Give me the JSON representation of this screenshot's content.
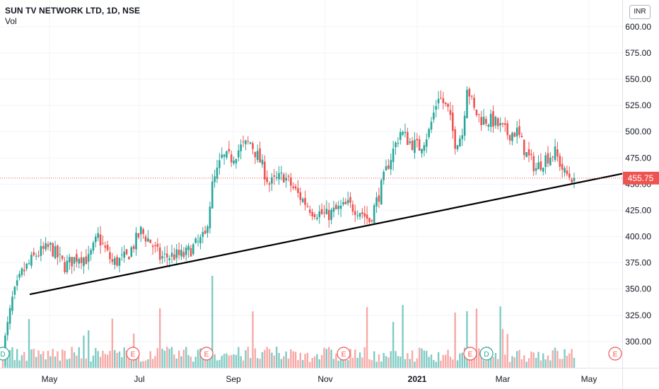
{
  "header": {
    "symbol_line": "SUN TV NETWORK LTD, 1D, NSE",
    "vol_label": "Vol",
    "currency": "INR"
  },
  "chart_data": {
    "type": "candlestick",
    "title": "SUN TV NETWORK LTD, 1D, NSE",
    "currency": "INR",
    "ylim": [
      275,
      612
    ],
    "y_ticks": [
      300.0,
      325.0,
      350.0,
      375.0,
      400.0,
      425.0,
      450.0,
      475.0,
      500.0,
      525.0,
      550.0,
      575.0,
      600.0
    ],
    "y_tick_labels": [
      "300.00",
      "325.00",
      "350.00",
      "375.00",
      "400.00",
      "425.00",
      "450.00",
      "475.00",
      "500.00",
      "525.00",
      "550.00",
      "575.00",
      "600.00"
    ],
    "x_ticks": [
      "May",
      "Jul",
      "Sep",
      "Nov",
      "2021",
      "Mar",
      "May"
    ],
    "last_price": 455.75,
    "last_price_label": "455.75",
    "trendline": {
      "start_price": 345.0,
      "end_price": 460.0,
      "start_label": "late Apr 2020",
      "end_label": "Apr 2021"
    },
    "price_keypoints": [
      [
        0,
        290
      ],
      [
        4,
        340
      ],
      [
        8,
        365
      ],
      [
        14,
        383
      ],
      [
        20,
        390
      ],
      [
        26,
        372
      ],
      [
        32,
        382
      ],
      [
        36,
        378
      ],
      [
        40,
        400
      ],
      [
        46,
        375
      ],
      [
        52,
        380
      ],
      [
        58,
        405
      ],
      [
        62,
        395
      ],
      [
        66,
        380
      ],
      [
        72,
        382
      ],
      [
        76,
        382
      ],
      [
        80,
        390
      ],
      [
        85,
        400
      ],
      [
        88,
        448
      ],
      [
        92,
        475
      ],
      [
        96,
        475
      ],
      [
        100,
        485
      ],
      [
        104,
        490
      ],
      [
        108,
        472
      ],
      [
        112,
        450
      ],
      [
        118,
        458
      ],
      [
        124,
        440
      ],
      [
        130,
        425
      ],
      [
        136,
        420
      ],
      [
        140,
        425
      ],
      [
        145,
        430
      ],
      [
        150,
        425
      ],
      [
        154,
        415
      ],
      [
        158,
        440
      ],
      [
        162,
        470
      ],
      [
        167,
        500
      ],
      [
        171,
        490
      ],
      [
        175,
        485
      ],
      [
        179,
        500
      ],
      [
        183,
        535
      ],
      [
        187,
        520
      ],
      [
        190,
        490
      ],
      [
        193,
        498
      ],
      [
        195,
        545
      ],
      [
        198,
        520
      ],
      [
        201,
        512
      ],
      [
        206,
        510
      ],
      [
        212,
        498
      ],
      [
        216,
        500
      ],
      [
        220,
        478
      ],
      [
        224,
        465
      ],
      [
        228,
        475
      ],
      [
        232,
        480
      ],
      [
        236,
        460
      ],
      [
        240,
        455.75
      ]
    ],
    "events": [
      {
        "label": "D",
        "position": "late Apr 2020"
      },
      {
        "label": "E",
        "position": "Jun 2020"
      },
      {
        "label": "E",
        "position": "Aug 2020"
      },
      {
        "label": "E",
        "position": "Nov 2020"
      },
      {
        "label": "E",
        "position": "Feb 2021"
      },
      {
        "label": "D",
        "position": "Feb 2021"
      },
      {
        "label": "E",
        "position": "May 2021"
      }
    ],
    "colors": {
      "up": "#26a69a",
      "down": "#ef5350",
      "vol_up": "#80cbc4",
      "vol_down": "#f7a9a7",
      "grid": "#f0f3fa",
      "trendline": "#000000"
    },
    "grid": true
  }
}
